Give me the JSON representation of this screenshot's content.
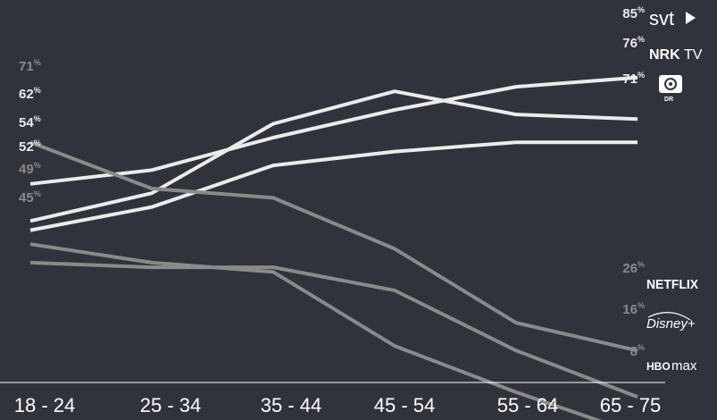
{
  "chart_data": {
    "type": "line",
    "categories": [
      "18 - 24",
      "25 - 34",
      "35 - 44",
      "45 - 54",
      "55 - 64",
      "65 - 75"
    ],
    "ylim": [
      0,
      100
    ],
    "unit": "%",
    "series": [
      {
        "name": "svt",
        "values": [
          62,
          65,
          72,
          78,
          83,
          85
        ],
        "color": "#ebebeb",
        "logo": "svt-logo"
      },
      {
        "name": "NRK TV",
        "values": [
          54,
          60,
          75,
          82,
          77,
          76
        ],
        "color": "#ebebeb",
        "logo": "nrk-tv-logo"
      },
      {
        "name": "DR",
        "values": [
          52,
          57,
          66,
          69,
          71,
          71
        ],
        "color": "#ebebeb",
        "logo": "dr-logo"
      },
      {
        "name": "NETFLIX",
        "values": [
          71,
          61,
          59,
          48,
          32,
          26
        ],
        "color": "#8a8a8a",
        "logo": "netflix-logo"
      },
      {
        "name": "Disney+",
        "values": [
          45,
          44,
          44,
          39,
          26,
          16
        ],
        "color": "#8a8a8a",
        "logo": "disney-plus-logo"
      },
      {
        "name": "HBO max",
        "values": [
          49,
          45,
          43,
          27,
          17,
          8
        ],
        "color": "#8a8a8a",
        "logo": "hbo-max-logo"
      }
    ],
    "start_labels": [
      {
        "series": "NETFLIX",
        "value": "71"
      },
      {
        "series": "svt",
        "value": "62"
      },
      {
        "series": "NRK TV",
        "value": "54"
      },
      {
        "series": "DR",
        "value": "52"
      },
      {
        "series": "HBO max",
        "value": "49"
      },
      {
        "series": "Disney+",
        "value": "45"
      }
    ],
    "end_labels": [
      {
        "series": "svt",
        "value": "85"
      },
      {
        "series": "NRK TV",
        "value": "76"
      },
      {
        "series": "DR",
        "value": "71"
      },
      {
        "series": "NETFLIX",
        "value": "26"
      },
      {
        "series": "Disney+",
        "value": "16"
      },
      {
        "series": "HBO max",
        "value": "8"
      }
    ],
    "percent_sign": "%",
    "grid": false,
    "legend": "logos at line ends (right)"
  },
  "logos": {
    "svt": "svt",
    "nrk": "NRK",
    "nrk_tv": "TV",
    "dr": "DR",
    "netflix": "NETFLIX",
    "disney": "Disney+",
    "hbo": "HBO",
    "max": "max"
  }
}
